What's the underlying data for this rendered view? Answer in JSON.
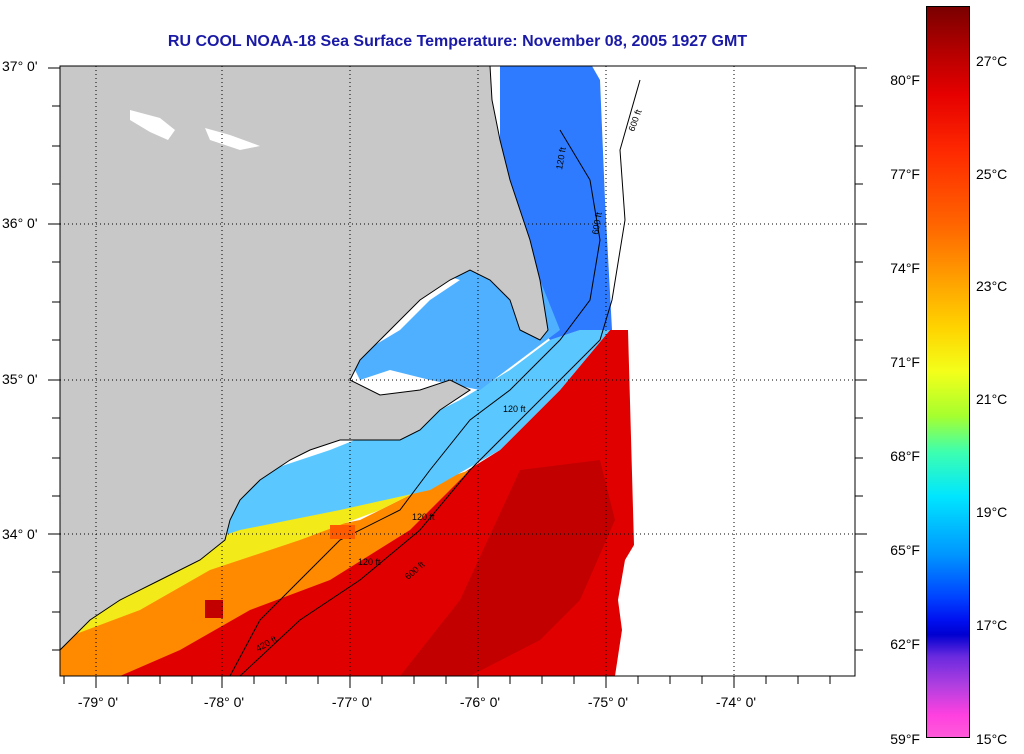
{
  "title": "RU COOL  NOAA-18  Sea Surface Temperature:  November 08, 2005 1927 GMT",
  "latitude_labels": [
    "37° 0'",
    "36° 0'",
    "35° 0'",
    "34° 0'"
  ],
  "longitude_labels": [
    "-79° 0'",
    "-78° 0'",
    "-77° 0'",
    "-76° 0'",
    "-75° 0'",
    "-74° 0'"
  ],
  "colorbar": {
    "fahrenheit_labels": [
      "80°F",
      "77°F",
      "74°F",
      "71°F",
      "68°F",
      "65°F",
      "62°F",
      "59°F"
    ],
    "celsius_labels": [
      "27°C",
      "25°C",
      "23°C",
      "21°C",
      "19°C",
      "17°C",
      "15°C"
    ]
  },
  "contour_labels": [
    "600 ft",
    "120 ft",
    "600 ft",
    "120 ft",
    "120 ft",
    "120 ft",
    "600 ft",
    "420 ft"
  ],
  "colors": {
    "land": "#c8c8c8",
    "no_data": "#ffffff",
    "title": "#1a1aa6",
    "warm": "#e60000",
    "cool": "#3fa0ff"
  }
}
